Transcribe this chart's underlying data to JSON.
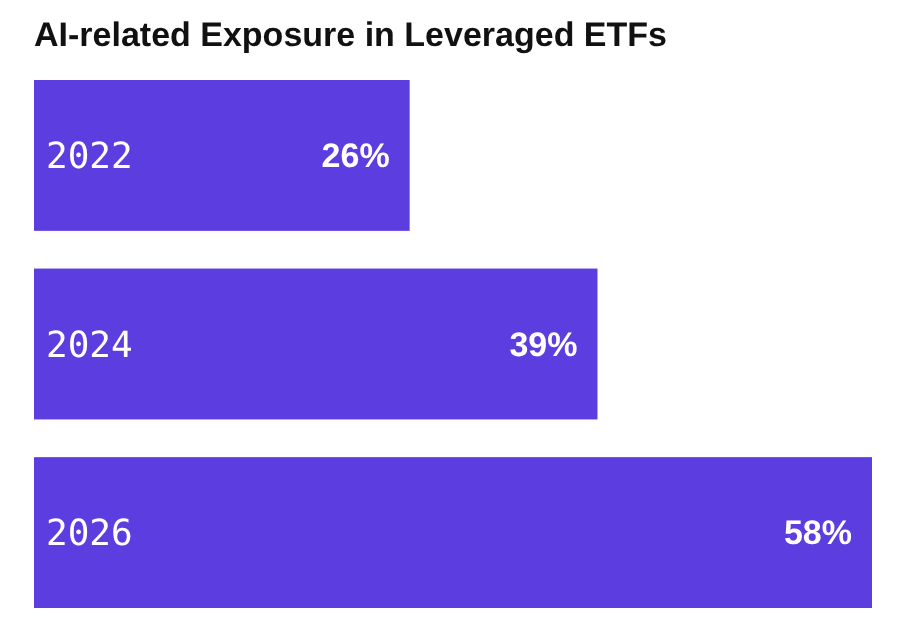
{
  "chart_data": {
    "type": "bar",
    "orientation": "horizontal",
    "title": "AI-related Exposure in Leveraged ETFs",
    "categories": [
      "2022",
      "2024",
      "2026"
    ],
    "values": [
      26,
      39,
      58
    ],
    "color": "#5b3de0",
    "value_labels": [
      "26%",
      "39%",
      "58%"
    ]
  }
}
